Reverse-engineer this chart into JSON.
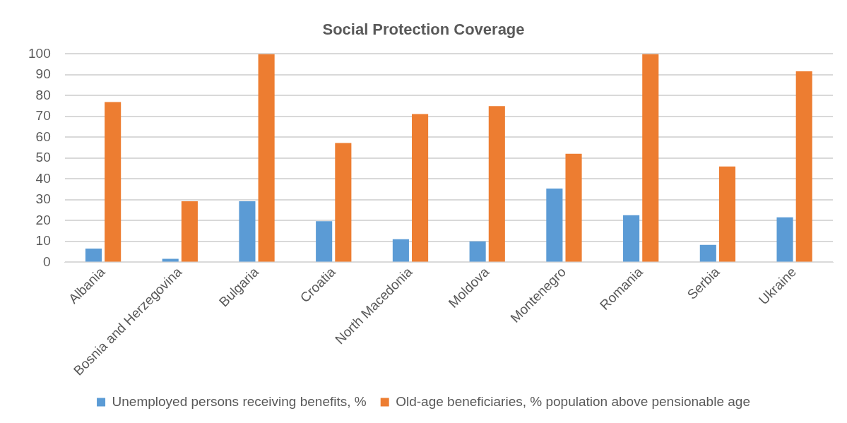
{
  "chart_data": {
    "type": "bar",
    "title": "Social Protection Coverage",
    "categories": [
      "Albania",
      "Bosnia and Herzegovina",
      "Bulgaria",
      "Croatia",
      "North Macedonia",
      "Moldova",
      "Montenegro",
      "Romania",
      "Serbia",
      "Ukraine"
    ],
    "series": [
      {
        "name": "Unemployed persons receiving benefits, %",
        "color": "#5b9bd5",
        "values": [
          6.6,
          1.7,
          29.3,
          19.7,
          11.1,
          10.1,
          35.4,
          22.6,
          8.4,
          21.6
        ]
      },
      {
        "name": "Old-age beneficiaries, % population above pensionable age",
        "color": "#ed7d31",
        "values": [
          76.9,
          29.3,
          100,
          57.3,
          71.2,
          75.0,
          52.1,
          100,
          46.0,
          91.7
        ]
      }
    ],
    "ylim": [
      0,
      100
    ],
    "yticks": [
      0,
      10,
      20,
      30,
      40,
      50,
      60,
      70,
      80,
      90,
      100
    ],
    "grid": "y",
    "legend": "bottom"
  }
}
